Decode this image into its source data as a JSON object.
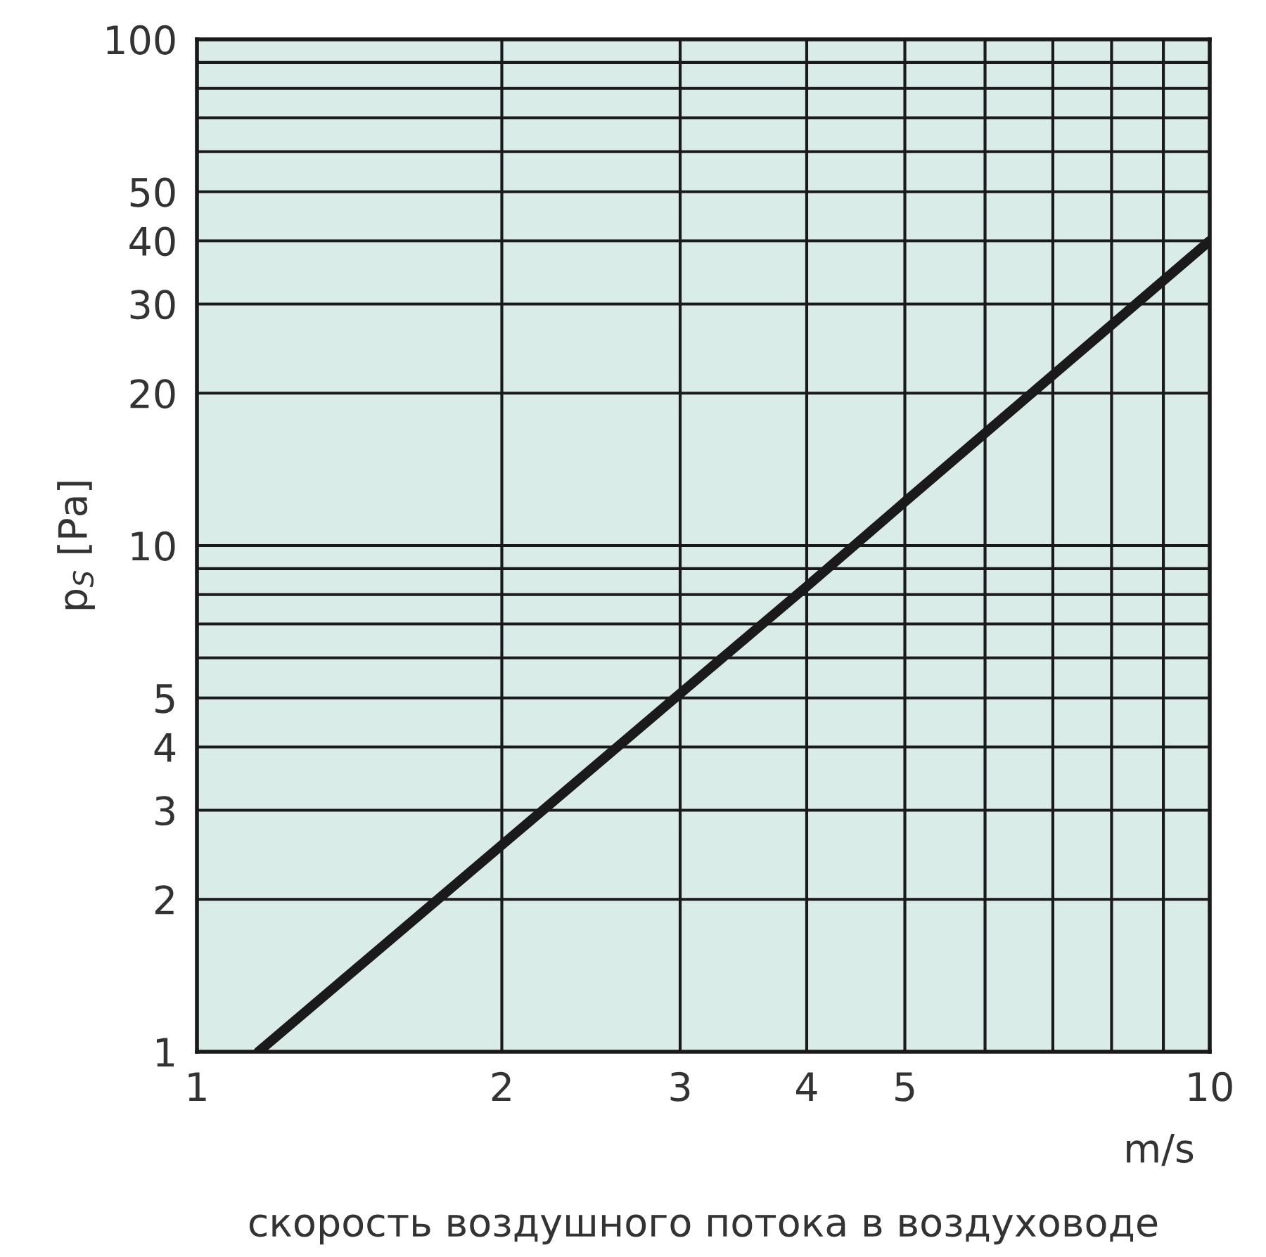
{
  "chart_data": {
    "type": "line",
    "log": "xy",
    "xlabel": "скорость воздушного потока в воздуховоде",
    "ylabel": "p$_{S}$ [Pa]",
    "annotations": [
      "m/s"
    ],
    "x": [
      1.15,
      2,
      3,
      4,
      5,
      10
    ],
    "series": [
      {
        "color": "#1a1a1a",
        "values": [
          1,
          2.56,
          5.1,
          8.3,
          12.2,
          40
        ]
      }
    ],
    "xlim": [
      1,
      10
    ],
    "ylim": [
      1,
      100
    ],
    "xticks": [
      1,
      2,
      3,
      4,
      5,
      {
        "value": 6,
        "label": null
      },
      {
        "value": 7,
        "label": null
      },
      {
        "value": 8,
        "label": null
      },
      {
        "value": 9,
        "label": null
      },
      10
    ],
    "yticks": [
      1,
      2,
      3,
      4,
      5,
      {
        "value": 6,
        "label": null
      },
      {
        "value": 7,
        "label": null
      },
      {
        "value": 8,
        "label": null
      },
      {
        "value": 9,
        "label": null
      },
      10,
      20,
      30,
      40,
      50,
      {
        "value": 60,
        "label": null
      },
      {
        "value": 70,
        "label": null
      },
      {
        "value": 80,
        "label": null
      },
      {
        "value": 90,
        "label": null
      },
      100
    ],
    "grid": true,
    "marker": "none",
    "line_style": "solid"
  }
}
